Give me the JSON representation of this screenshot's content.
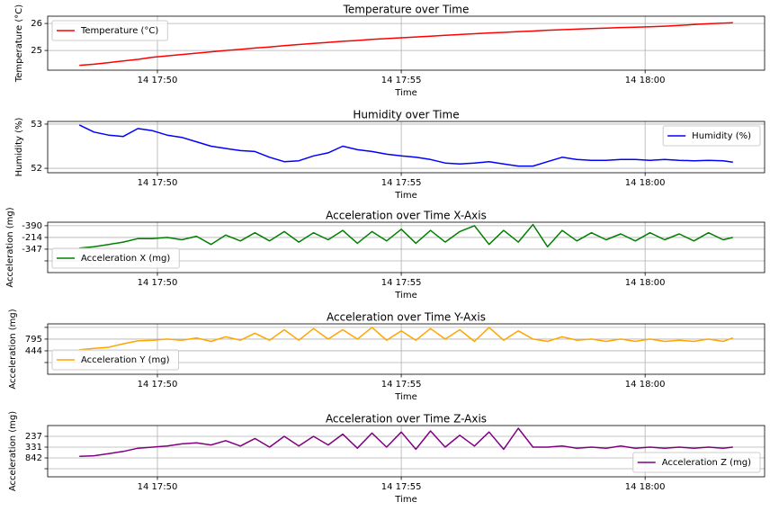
{
  "chart_data": [
    {
      "type": "line",
      "title": "Temperature over Time",
      "xlabel": "Time",
      "ylabel": "Temperature (°C)",
      "x": [
        48.4,
        48.7,
        49.0,
        49.3,
        49.6,
        49.9,
        50.2,
        50.5,
        50.8,
        51.1,
        51.4,
        51.7,
        52.0,
        52.3,
        52.6,
        52.9,
        53.2,
        53.5,
        53.8,
        54.1,
        54.4,
        54.7,
        55.0,
        55.3,
        55.6,
        55.9,
        56.2,
        56.5,
        56.8,
        57.1,
        57.4,
        57.7,
        58.0,
        58.3,
        58.6,
        58.9,
        59.2,
        59.5,
        59.8,
        60.1,
        60.4,
        60.7,
        61.0,
        61.3,
        61.6,
        61.8
      ],
      "series": [
        {
          "name": "Temperature (°C)",
          "color": "#ff0000",
          "values": [
            24.45,
            24.49,
            24.55,
            24.61,
            24.67,
            24.75,
            24.8,
            24.85,
            24.9,
            24.95,
            25.0,
            25.04,
            25.09,
            25.13,
            25.18,
            25.22,
            25.26,
            25.3,
            25.34,
            25.37,
            25.41,
            25.44,
            25.47,
            25.5,
            25.53,
            25.56,
            25.59,
            25.62,
            25.65,
            25.67,
            25.7,
            25.72,
            25.75,
            25.77,
            25.79,
            25.81,
            25.83,
            25.85,
            25.86,
            25.88,
            25.9,
            25.93,
            25.96,
            25.99,
            26.01,
            26.03
          ]
        }
      ],
      "xlim": [
        47.75,
        62.45
      ],
      "ylim": [
        24.27,
        26.27
      ],
      "xticks": [
        {
          "value": 50,
          "label": "14 17:50"
        },
        {
          "value": 55,
          "label": "14 17:55"
        },
        {
          "value": 60,
          "label": "14 18:00"
        }
      ],
      "yticks": [
        25,
        26
      ],
      "grid": true,
      "legend": "upper left"
    },
    {
      "type": "line",
      "title": "Humidity over Time",
      "xlabel": "Time",
      "ylabel": "Humidity (%)",
      "x": [
        48.4,
        48.7,
        49.0,
        49.3,
        49.6,
        49.9,
        50.2,
        50.5,
        50.8,
        51.1,
        51.4,
        51.7,
        52.0,
        52.3,
        52.6,
        52.9,
        53.2,
        53.5,
        53.8,
        54.1,
        54.4,
        54.7,
        55.0,
        55.3,
        55.6,
        55.9,
        56.2,
        56.5,
        56.8,
        57.1,
        57.4,
        57.7,
        58.0,
        58.3,
        58.6,
        58.9,
        59.2,
        59.5,
        59.8,
        60.1,
        60.4,
        60.7,
        61.0,
        61.3,
        61.6,
        61.8
      ],
      "series": [
        {
          "name": "Humidity (%)",
          "color": "#0000ff",
          "values": [
            52.98,
            52.82,
            52.75,
            52.72,
            52.9,
            52.85,
            52.75,
            52.7,
            52.6,
            52.5,
            52.45,
            52.4,
            52.38,
            52.25,
            52.15,
            52.17,
            52.28,
            52.35,
            52.5,
            52.42,
            52.38,
            52.32,
            52.28,
            52.25,
            52.2,
            52.12,
            52.1,
            52.12,
            52.15,
            52.1,
            52.05,
            52.05,
            52.15,
            52.25,
            52.2,
            52.18,
            52.18,
            52.2,
            52.2,
            52.18,
            52.2,
            52.18,
            52.17,
            52.18,
            52.17,
            52.14
          ]
        }
      ],
      "xlim": [
        47.75,
        62.45
      ],
      "ylim": [
        51.9,
        53.06
      ],
      "xticks": [
        {
          "value": 50,
          "label": "14 17:50"
        },
        {
          "value": 55,
          "label": "14 17:55"
        },
        {
          "value": 60,
          "label": "14 18:00"
        }
      ],
      "yticks": [
        52,
        53
      ],
      "grid": true,
      "legend": "upper right"
    },
    {
      "type": "line",
      "title": "Acceleration over Time X-Axis",
      "xlabel": "Time",
      "ylabel": "Acceleration (mg)",
      "x": [
        48.4,
        48.7,
        49.0,
        49.3,
        49.6,
        49.9,
        50.2,
        50.5,
        50.8,
        51.1,
        51.4,
        51.7,
        52.0,
        52.3,
        52.6,
        52.9,
        53.2,
        53.5,
        53.8,
        54.1,
        54.4,
        54.7,
        55.0,
        55.3,
        55.6,
        55.9,
        56.2,
        56.5,
        56.8,
        57.1,
        57.4,
        57.7,
        58.0,
        58.3,
        58.6,
        58.9,
        59.2,
        59.5,
        59.8,
        60.1,
        60.4,
        60.7,
        61.0,
        61.3,
        61.6,
        61.8
      ],
      "series": [
        {
          "name": "Acceleration X (mg)",
          "color": "#008000",
          "values": [
            1.1,
            1.2,
            1.4,
            1.6,
            1.9,
            1.9,
            2.0,
            1.8,
            2.1,
            1.4,
            2.2,
            1.7,
            2.4,
            1.7,
            2.5,
            1.6,
            2.4,
            1.8,
            2.6,
            1.5,
            2.5,
            1.7,
            2.7,
            1.5,
            2.6,
            1.6,
            2.5,
            3.0,
            1.4,
            2.6,
            1.6,
            3.1,
            1.2,
            2.6,
            1.7,
            2.4,
            1.8,
            2.3,
            1.7,
            2.4,
            1.8,
            2.3,
            1.7,
            2.4,
            1.8,
            2.0
          ]
        }
      ],
      "xlim": [
        47.75,
        62.45
      ],
      "ylim": [
        -1,
        3.3
      ],
      "xticks": [
        {
          "value": 50,
          "label": "14 17:50"
        },
        {
          "value": 55,
          "label": "14 17:55"
        },
        {
          "value": 60,
          "label": "14 18:00"
        }
      ],
      "yticks": [
        {
          "value": 3,
          "label": "-390"
        },
        {
          "value": 2,
          "label": "-214"
        },
        {
          "value": 1,
          "label": "-347"
        },
        {
          "value": 0,
          "label": null
        }
      ],
      "grid": true,
      "legend": "lower left"
    },
    {
      "type": "line",
      "title": "Acceleration over Time Y-Axis",
      "xlabel": "Time",
      "ylabel": "Acceleration (mg)",
      "x": [
        48.4,
        48.7,
        49.0,
        49.3,
        49.6,
        49.9,
        50.2,
        50.5,
        50.8,
        51.1,
        51.4,
        51.7,
        52.0,
        52.3,
        52.6,
        52.9,
        53.2,
        53.5,
        53.8,
        54.1,
        54.4,
        54.7,
        55.0,
        55.3,
        55.6,
        55.9,
        56.2,
        56.5,
        56.8,
        57.1,
        57.4,
        57.7,
        58.0,
        58.3,
        58.6,
        58.9,
        59.2,
        59.5,
        59.8,
        60.1,
        60.4,
        60.7,
        61.0,
        61.3,
        61.6,
        61.8
      ],
      "series": [
        {
          "name": "Acceleration Y (mg)",
          "color": "#ffa500",
          "values": [
            1.1,
            1.2,
            1.3,
            1.6,
            1.85,
            1.9,
            2.0,
            1.9,
            2.1,
            1.8,
            2.2,
            1.9,
            2.5,
            1.9,
            2.8,
            1.9,
            2.9,
            2.0,
            2.8,
            2.0,
            3.0,
            1.9,
            2.7,
            1.9,
            2.9,
            2.0,
            2.8,
            1.8,
            3.0,
            1.9,
            2.7,
            2.0,
            1.8,
            2.2,
            1.9,
            2.0,
            1.8,
            2.0,
            1.8,
            2.0,
            1.8,
            1.9,
            1.8,
            2.0,
            1.8,
            2.1
          ]
        }
      ],
      "xlim": [
        47.75,
        62.45
      ],
      "ylim": [
        -1,
        3.3
      ],
      "xticks": [
        {
          "value": 50,
          "label": "14 17:50"
        },
        {
          "value": 55,
          "label": "14 17:55"
        },
        {
          "value": 60,
          "label": "14 18:00"
        }
      ],
      "yticks": [
        {
          "value": 3,
          "label": null
        },
        {
          "value": 2,
          "label": "795"
        },
        {
          "value": 1,
          "label": "444"
        },
        {
          "value": 0,
          "label": null
        }
      ],
      "grid": true,
      "legend": "lower left"
    },
    {
      "type": "line",
      "title": "Acceleration over Time Z-Axis",
      "xlabel": "Time",
      "ylabel": "Acceleration (mg)",
      "x": [
        48.4,
        48.7,
        49.0,
        49.3,
        49.6,
        49.9,
        50.2,
        50.5,
        50.8,
        51.1,
        51.4,
        51.7,
        52.0,
        52.3,
        52.6,
        52.9,
        53.2,
        53.5,
        53.8,
        54.1,
        54.4,
        54.7,
        55.0,
        55.3,
        55.6,
        55.9,
        56.2,
        56.5,
        56.8,
        57.1,
        57.4,
        57.7,
        58.0,
        58.3,
        58.6,
        58.9,
        59.2,
        59.5,
        59.8,
        60.1,
        60.4,
        60.7,
        61.0,
        61.3,
        61.6,
        61.8
      ],
      "series": [
        {
          "name": "Acceleration Z (mg)",
          "color": "#800080",
          "values": [
            1.15,
            1.2,
            1.4,
            1.6,
            1.9,
            2.0,
            2.1,
            2.3,
            2.4,
            2.2,
            2.6,
            2.1,
            2.8,
            2.0,
            3.0,
            2.1,
            3.0,
            2.2,
            3.2,
            1.9,
            3.3,
            2.0,
            3.4,
            1.8,
            3.5,
            2.0,
            3.1,
            2.1,
            3.4,
            1.8,
            3.75,
            2.0,
            2.0,
            2.1,
            1.9,
            2.0,
            1.9,
            2.1,
            1.9,
            2.0,
            1.9,
            2.0,
            1.9,
            2.0,
            1.9,
            2.0
          ]
        }
      ],
      "xlim": [
        47.75,
        62.45
      ],
      "ylim": [
        -0.75,
        4
      ],
      "xticks": [
        {
          "value": 50,
          "label": "14 17:50"
        },
        {
          "value": 55,
          "label": "14 17:55"
        },
        {
          "value": 60,
          "label": "14 18:00"
        }
      ],
      "yticks": [
        {
          "value": 3,
          "label": "237"
        },
        {
          "value": 2,
          "label": "331"
        },
        {
          "value": 1,
          "label": "842"
        },
        {
          "value": 0,
          "label": null
        }
      ],
      "grid": true,
      "legend": "lower right"
    }
  ]
}
